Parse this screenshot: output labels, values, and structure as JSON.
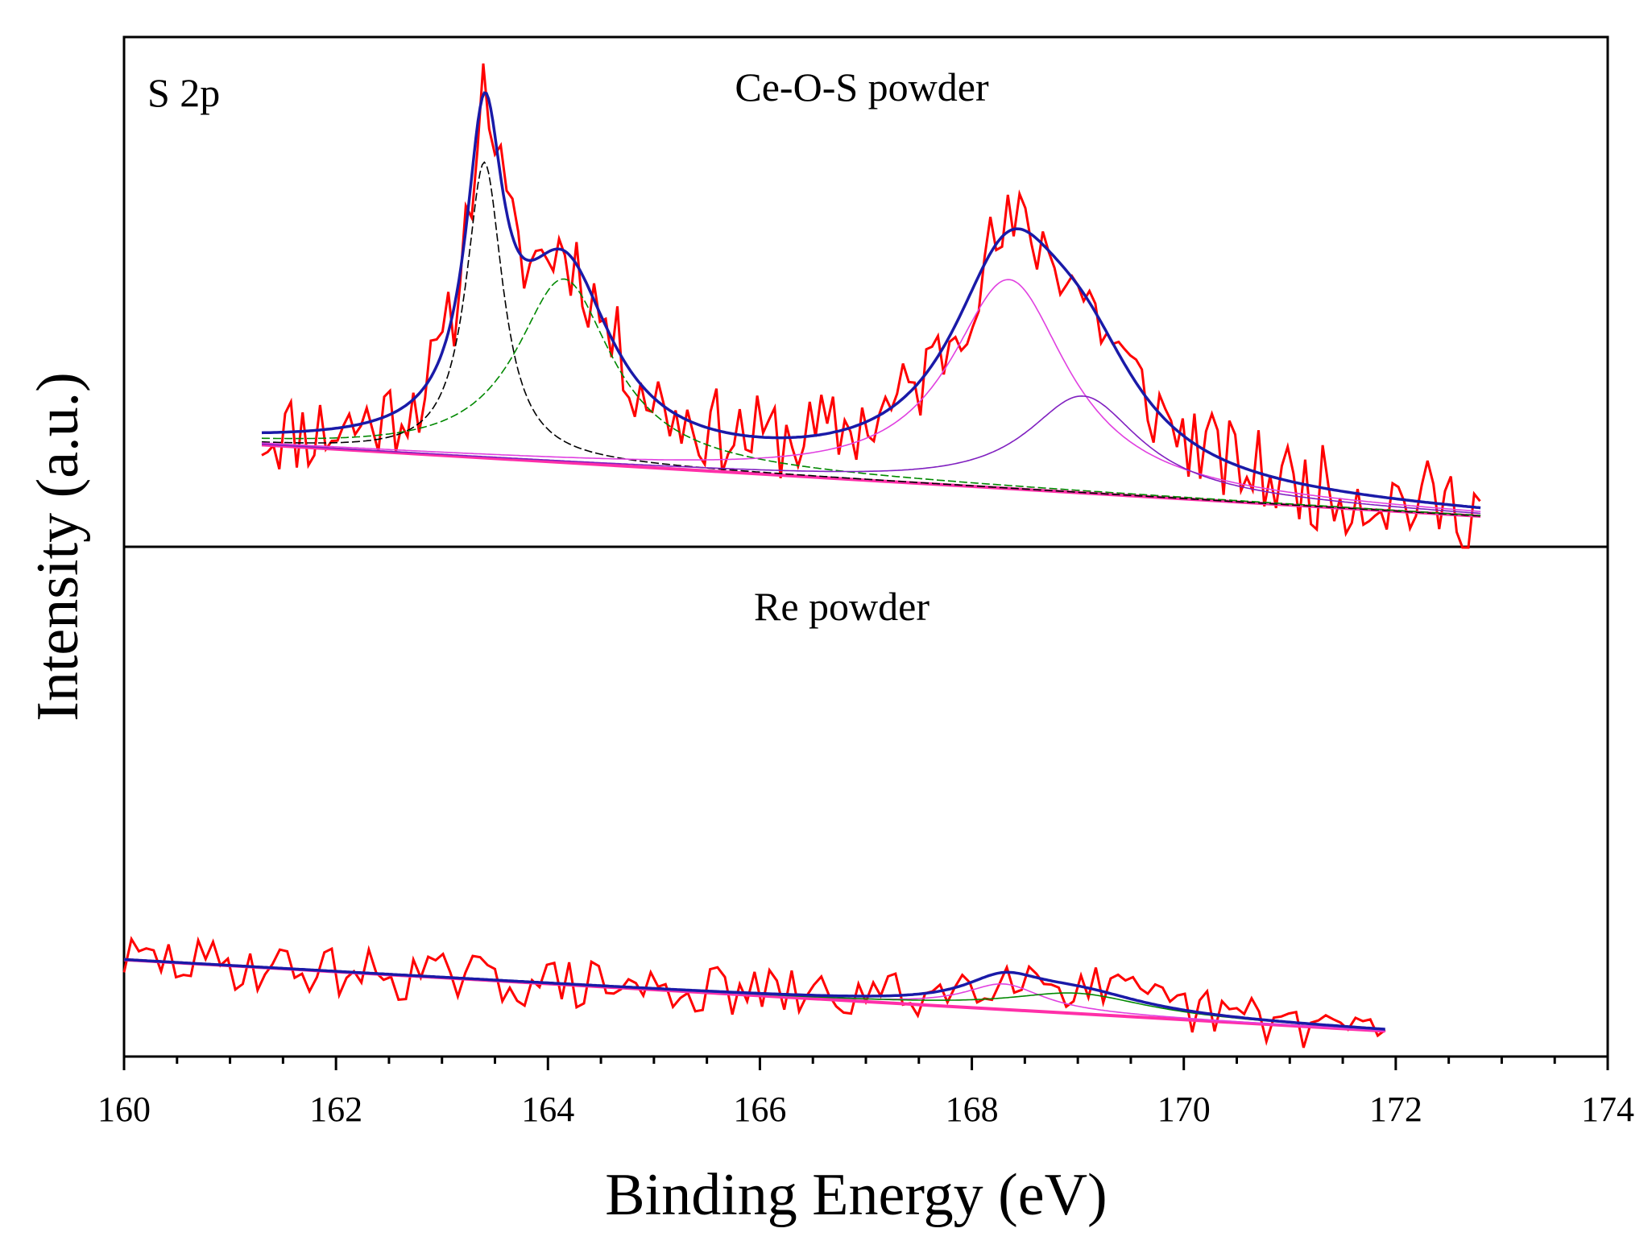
{
  "chart_data": {
    "type": "line",
    "ylabel": "Intensity (a.u.)",
    "xlabel": "Binding Energy (eV)",
    "xlim": [
      160,
      174
    ],
    "x_ticks": [
      "160",
      "162",
      "164",
      "166",
      "168",
      "170",
      "172",
      "174"
    ],
    "panel_label": "S 2p",
    "colors": {
      "raw": "#ff0000",
      "envelope": "#1a1aa8",
      "background": "#ff2fa8",
      "peak_black": "#000000",
      "peak_green": "#008800",
      "peak_magenta": "#e040e0",
      "peak_purple": "#8020c0"
    },
    "panels": [
      {
        "title": "Ce-O-S powder",
        "x_range": [
          161.3,
          172.8
        ],
        "background": {
          "x": [
            161.3,
            172.8
          ],
          "y": [
            0.2,
            0.06
          ]
        },
        "peaks": [
          {
            "center": 163.4,
            "height": 0.58,
            "fwhm": 0.42,
            "color": "#000000",
            "style": "dashed"
          },
          {
            "center": 164.15,
            "height": 0.36,
            "fwhm": 1.1,
            "color": "#008800",
            "style": "dashed"
          },
          {
            "center": 168.35,
            "height": 0.41,
            "fwhm": 1.35,
            "color": "#e040e0",
            "style": "solid"
          },
          {
            "center": 169.05,
            "height": 0.19,
            "fwhm": 1.3,
            "color": "#8020c0",
            "style": "solid"
          }
        ],
        "raw": {
          "noise": 0.085,
          "seed": 11,
          "step": 0.055
        }
      },
      {
        "title": "Re powder",
        "x_range": [
          160.0,
          171.9
        ],
        "background": {
          "x": [
            160.0,
            171.9
          ],
          "y": [
            0.19,
            0.05
          ]
        },
        "peaks": [
          {
            "center": 168.3,
            "height": 0.05,
            "fwhm": 0.9,
            "color": "#e040e0",
            "style": "solid"
          },
          {
            "center": 169.0,
            "height": 0.04,
            "fwhm": 1.6,
            "color": "#008800",
            "style": "solid"
          }
        ],
        "raw": {
          "noise": 0.05,
          "seed": 29,
          "step": 0.07
        }
      }
    ]
  }
}
